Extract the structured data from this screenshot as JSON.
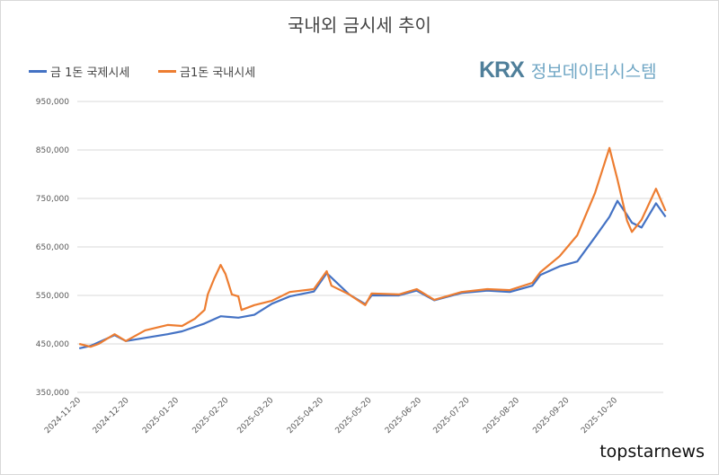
{
  "chart_data": {
    "type": "line",
    "title": "국내외 금시세 추이",
    "xlabel": "",
    "ylabel": "",
    "ylim": [
      350000,
      950000
    ],
    "yticks": [
      "350,000",
      "450,000",
      "550,000",
      "650,000",
      "750,000",
      "850,000",
      "950,000"
    ],
    "xticks": [
      "2024-11-20",
      "2024-12-20",
      "2025-01-20",
      "2025-02-20",
      "2025-03-20",
      "2025-04-20",
      "2025-05-20",
      "2025-06-20",
      "2025-07-20",
      "2025-08-20",
      "2025-09-20",
      "2025-10-20"
    ],
    "grid": "horizontal",
    "legend_position": "top-left",
    "series": [
      {
        "name": "금 1돈 국제시세",
        "color": "#4472c4",
        "points": [
          [
            "2024-11-19",
            441000
          ],
          [
            "2024-11-26",
            446000
          ],
          [
            "2024-12-11",
            468000
          ],
          [
            "2024-12-18",
            456000
          ],
          [
            "2025-01-13",
            470000
          ],
          [
            "2025-01-22",
            476000
          ],
          [
            "2025-02-05",
            492000
          ],
          [
            "2025-02-15",
            507000
          ],
          [
            "2025-02-26",
            504000
          ],
          [
            "2025-03-08",
            510000
          ],
          [
            "2025-03-19",
            533000
          ],
          [
            "2025-03-30",
            548000
          ],
          [
            "2025-04-14",
            558000
          ],
          [
            "2025-04-22",
            596000
          ],
          [
            "2025-05-06",
            552000
          ],
          [
            "2025-05-16",
            532000
          ],
          [
            "2025-05-20",
            550000
          ],
          [
            "2025-06-06",
            550000
          ],
          [
            "2025-06-17",
            560000
          ],
          [
            "2025-06-28",
            540000
          ],
          [
            "2025-07-15",
            555000
          ],
          [
            "2025-07-31",
            560000
          ],
          [
            "2025-08-14",
            557000
          ],
          [
            "2025-08-28",
            570000
          ],
          [
            "2025-09-02",
            592000
          ],
          [
            "2025-09-14",
            610000
          ],
          [
            "2025-09-25",
            620000
          ],
          [
            "2025-10-06",
            670000
          ],
          [
            "2025-10-15",
            712000
          ],
          [
            "2025-10-20",
            745000
          ],
          [
            "2025-10-26",
            716000
          ],
          [
            "2025-10-29",
            700000
          ],
          [
            "2025-11-04",
            690000
          ],
          [
            "2025-11-13",
            740000
          ],
          [
            "2025-11-19",
            712000
          ]
        ]
      },
      {
        "name": "금1돈 국내시세",
        "color": "#ed7d31",
        "points": [
          [
            "2024-11-19",
            450000
          ],
          [
            "2024-11-26",
            444000
          ],
          [
            "2024-12-01",
            450000
          ],
          [
            "2024-12-11",
            470000
          ],
          [
            "2024-12-18",
            456000
          ],
          [
            "2024-12-30",
            478000
          ],
          [
            "2025-01-13",
            489000
          ],
          [
            "2025-01-22",
            487000
          ],
          [
            "2025-01-30",
            502000
          ],
          [
            "2025-02-05",
            520000
          ],
          [
            "2025-02-07",
            552000
          ],
          [
            "2025-02-11",
            585000
          ],
          [
            "2025-02-15",
            613000
          ],
          [
            "2025-02-18",
            594000
          ],
          [
            "2025-02-22",
            552000
          ],
          [
            "2025-02-26",
            548000
          ],
          [
            "2025-02-28",
            520000
          ],
          [
            "2025-03-08",
            530000
          ],
          [
            "2025-03-19",
            539000
          ],
          [
            "2025-03-30",
            557000
          ],
          [
            "2025-04-14",
            563000
          ],
          [
            "2025-04-22",
            600000
          ],
          [
            "2025-04-25",
            570000
          ],
          [
            "2025-05-06",
            552000
          ],
          [
            "2025-05-16",
            530000
          ],
          [
            "2025-05-20",
            554000
          ],
          [
            "2025-06-06",
            552000
          ],
          [
            "2025-06-17",
            563000
          ],
          [
            "2025-06-28",
            541000
          ],
          [
            "2025-07-15",
            557000
          ],
          [
            "2025-07-31",
            563000
          ],
          [
            "2025-08-14",
            561000
          ],
          [
            "2025-08-28",
            576000
          ],
          [
            "2025-09-02",
            598000
          ],
          [
            "2025-09-14",
            631000
          ],
          [
            "2025-09-25",
            674000
          ],
          [
            "2025-10-06",
            761000
          ],
          [
            "2025-10-15",
            854000
          ],
          [
            "2025-10-20",
            789000
          ],
          [
            "2025-10-26",
            704000
          ],
          [
            "2025-10-29",
            681000
          ],
          [
            "2025-11-04",
            706000
          ],
          [
            "2025-11-13",
            770000
          ],
          [
            "2025-11-19",
            724000
          ]
        ]
      }
    ]
  },
  "logo": {
    "brand": "KRX",
    "system": "정보데이터시스템"
  },
  "watermark": "topstarnews"
}
